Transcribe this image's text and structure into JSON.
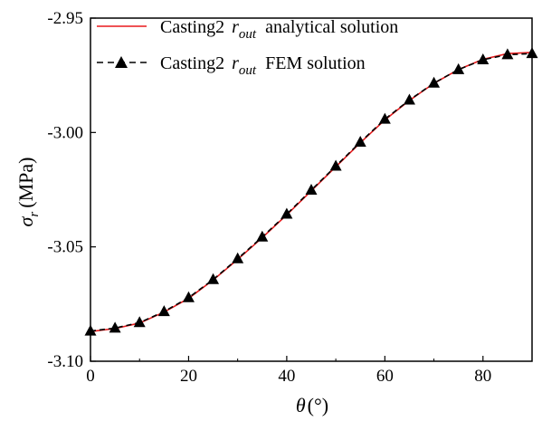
{
  "chart_data": {
    "type": "line",
    "xlabel": {
      "symbol": "θ",
      "unit": "(°)"
    },
    "ylabel": {
      "symbol": "σ",
      "subscript": "r",
      "unit": "(MPa)"
    },
    "xlim": [
      0,
      90
    ],
    "ylim": [
      -3.1,
      -2.95
    ],
    "xticks": [
      0,
      20,
      40,
      60,
      80
    ],
    "xtick_labels": [
      "0",
      "20",
      "40",
      "60",
      "80"
    ],
    "yticks": [
      -2.95,
      -3.0,
      -3.05,
      -3.1
    ],
    "ytick_labels": [
      "-2.95",
      "-3.00",
      "-3.05",
      "-3.10"
    ],
    "grid": false,
    "legend_position": "top-left",
    "series": [
      {
        "name": {
          "prefix": "Casting2",
          "symbol": "r",
          "subscript": "out",
          "suffix": "analytical solution"
        },
        "style": "solid",
        "color": "#e8191b",
        "x": [
          0,
          5,
          10,
          15,
          20,
          25,
          30,
          35,
          40,
          45,
          50,
          55,
          60,
          65,
          70,
          75,
          80,
          85,
          90
        ],
        "y": [
          -3.087,
          -3.0857,
          -3.0833,
          -3.0785,
          -3.0725,
          -3.0645,
          -3.0555,
          -3.046,
          -3.036,
          -3.0255,
          -3.015,
          -3.0045,
          -2.9945,
          -2.986,
          -2.9785,
          -2.9725,
          -2.968,
          -2.9655,
          -2.965
        ]
      },
      {
        "name": {
          "prefix": "Casting2",
          "symbol": "r",
          "subscript": "out",
          "suffix": "FEM solution"
        },
        "style": "dashed",
        "marker": "triangle",
        "color": "#000000",
        "x": [
          0,
          5,
          10,
          15,
          20,
          25,
          30,
          35,
          40,
          45,
          50,
          55,
          60,
          65,
          70,
          75,
          80,
          85,
          90
        ],
        "y": [
          -3.0868,
          -3.0855,
          -3.0831,
          -3.0783,
          -3.0722,
          -3.0643,
          -3.0552,
          -3.0457,
          -3.0357,
          -3.0252,
          -3.0147,
          -3.0042,
          -2.9942,
          -2.9858,
          -2.9784,
          -2.9725,
          -2.9682,
          -2.966,
          -2.9655
        ]
      }
    ]
  }
}
